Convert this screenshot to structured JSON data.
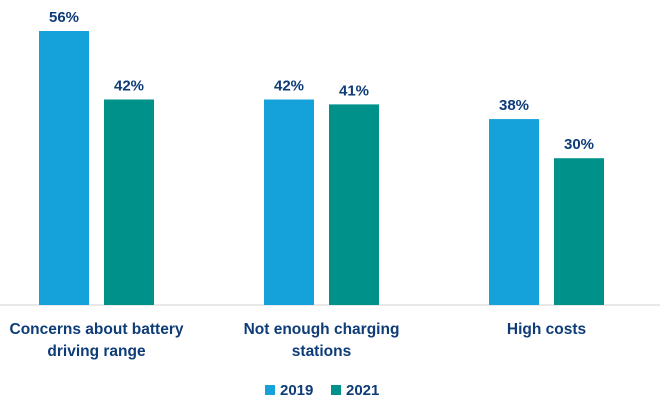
{
  "chart_data": {
    "type": "bar",
    "title": "",
    "xlabel": "",
    "ylabel": "",
    "ylim": [
      0,
      56
    ],
    "grid": false,
    "legend_position": "bottom",
    "categories": [
      [
        "Concerns about battery",
        "driving range"
      ],
      [
        "Not enough charging",
        "stations"
      ],
      [
        "High costs"
      ]
    ],
    "series": [
      {
        "name": "2019",
        "color": "#15a1d9",
        "values": [
          56,
          42,
          38
        ],
        "labels": [
          "56%",
          "42%",
          "38%"
        ]
      },
      {
        "name": "2021",
        "color": "#00918a",
        "values": [
          42,
          41,
          30
        ],
        "labels": [
          "42%",
          "41%",
          "30%"
        ]
      }
    ]
  },
  "colors": {
    "text": "#0d3c78",
    "axis": "#d0d0d0"
  }
}
